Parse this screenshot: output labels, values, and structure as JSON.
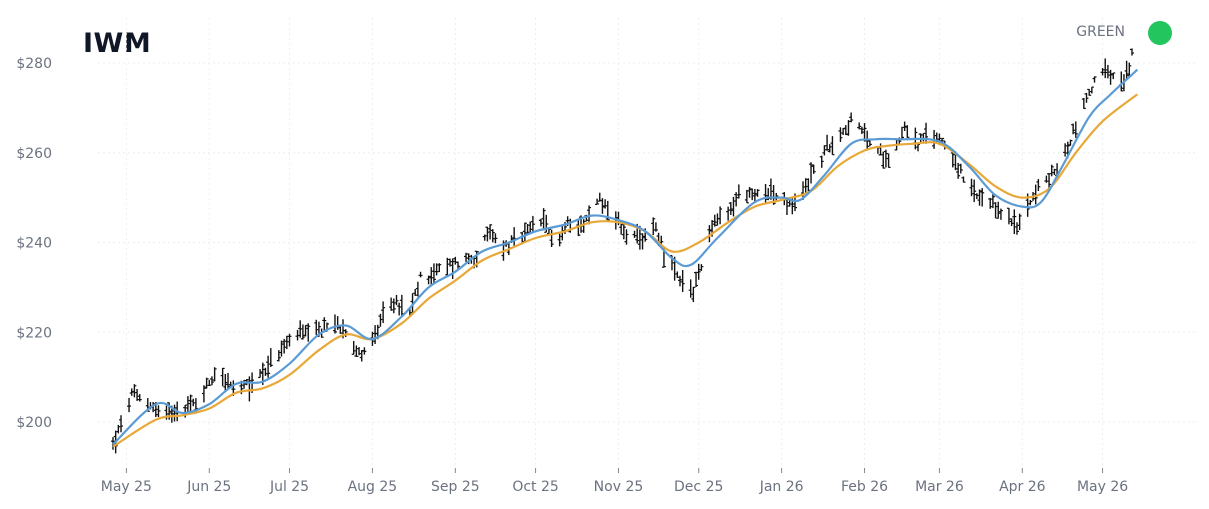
{
  "header": {
    "ticker": "IWM",
    "status_label": "GREEN",
    "status_color": "#22c55e"
  },
  "chart_data": {
    "type": "ohlc-line",
    "title": "IWM",
    "ylim": [
      190,
      290
    ],
    "y_ticks": [
      200,
      220,
      240,
      260,
      280
    ],
    "y_tick_labels": [
      "$200",
      "$220",
      "$240",
      "$260",
      "$280"
    ],
    "x_range": [
      "2025-05-20",
      "2026-06-08"
    ],
    "x_ticks": [
      "2025-05-25",
      "2025-06-25",
      "2025-07-25",
      "2025-08-25",
      "2025-09-25",
      "2025-10-25",
      "2025-11-25",
      "2025-12-25",
      "2026-01-25",
      "2026-02-25",
      "2026-03-25",
      "2026-04-25",
      "2026-05-25"
    ],
    "x_tick_labels": [
      "May 25",
      "Jun 25",
      "Jul 25",
      "Aug 25",
      "Sep 25",
      "Oct 25",
      "Nov 25",
      "Dec 25",
      "Jan 26",
      "Feb 26",
      "Mar 26",
      "Apr 26",
      "May 26"
    ],
    "grid": true,
    "colors": {
      "bars": "#111111",
      "fast_line": "#5b9bd5",
      "slow_line": "#e8a838",
      "grid": "#eeeeee"
    },
    "price_waypoints": [
      [
        "2025-05-20",
        195
      ],
      [
        "2025-05-23",
        199
      ],
      [
        "2025-05-27",
        206
      ],
      [
        "2025-06-03",
        204
      ],
      [
        "2025-06-08",
        201
      ],
      [
        "2025-06-12",
        203
      ],
      [
        "2025-06-20",
        204
      ],
      [
        "2025-06-28",
        212
      ],
      [
        "2025-07-04",
        207
      ],
      [
        "2025-07-10",
        208
      ],
      [
        "2025-07-16",
        212
      ],
      [
        "2025-07-22",
        216
      ],
      [
        "2025-07-28",
        220
      ],
      [
        "2025-08-02",
        219
      ],
      [
        "2025-08-10",
        222
      ],
      [
        "2025-08-15",
        221
      ],
      [
        "2025-08-20",
        215
      ],
      [
        "2025-08-26",
        219
      ],
      [
        "2025-09-01",
        227
      ],
      [
        "2025-09-08",
        224
      ],
      [
        "2025-09-12",
        232
      ],
      [
        "2025-09-20",
        234
      ],
      [
        "2025-09-27",
        236
      ],
      [
        "2025-10-03",
        237
      ],
      [
        "2025-10-08",
        242
      ],
      [
        "2025-10-13",
        239
      ],
      [
        "2025-10-20",
        241
      ],
      [
        "2025-10-27",
        245
      ],
      [
        "2025-11-02",
        240
      ],
      [
        "2025-11-07",
        245
      ],
      [
        "2025-11-12",
        244
      ],
      [
        "2025-11-18",
        250
      ],
      [
        "2025-11-23",
        246
      ],
      [
        "2025-11-28",
        242
      ],
      [
        "2025-12-04",
        240
      ],
      [
        "2025-12-08",
        245
      ],
      [
        "2025-12-12",
        238
      ],
      [
        "2025-12-18",
        231
      ],
      [
        "2025-12-23",
        229
      ],
      [
        "2025-12-30",
        244
      ],
      [
        "2026-01-05",
        246
      ],
      [
        "2026-01-10",
        252
      ],
      [
        "2026-01-14",
        250
      ],
      [
        "2026-01-20",
        252
      ],
      [
        "2026-01-25",
        249
      ],
      [
        "2026-01-30",
        248
      ],
      [
        "2026-02-05",
        255
      ],
      [
        "2026-02-12",
        262
      ],
      [
        "2026-02-20",
        267
      ],
      [
        "2026-02-25",
        264
      ],
      [
        "2026-03-02",
        260
      ],
      [
        "2026-03-07",
        259
      ],
      [
        "2026-03-12",
        266
      ],
      [
        "2026-03-17",
        262
      ],
      [
        "2026-03-22",
        264
      ],
      [
        "2026-03-28",
        262
      ],
      [
        "2026-04-03",
        254
      ],
      [
        "2026-04-08",
        250
      ],
      [
        "2026-04-13",
        248
      ],
      [
        "2026-04-18",
        247
      ],
      [
        "2026-04-23",
        243
      ],
      [
        "2026-04-28",
        250
      ],
      [
        "2026-05-03",
        253
      ],
      [
        "2026-05-10",
        258
      ],
      [
        "2026-05-16",
        268
      ],
      [
        "2026-05-22",
        276
      ],
      [
        "2026-05-26",
        278
      ],
      [
        "2026-06-02",
        275
      ],
      [
        "2026-06-07",
        286
      ]
    ],
    "fast_ma_waypoints": [
      [
        "2025-05-20",
        195
      ],
      [
        "2025-06-05",
        204
      ],
      [
        "2025-06-15",
        202
      ],
      [
        "2025-06-25",
        204
      ],
      [
        "2025-07-05",
        208.5
      ],
      [
        "2025-07-15",
        209
      ],
      [
        "2025-07-25",
        213
      ],
      [
        "2025-08-05",
        219.5
      ],
      [
        "2025-08-15",
        221.5
      ],
      [
        "2025-08-25",
        218.5
      ],
      [
        "2025-09-05",
        223.5
      ],
      [
        "2025-09-15",
        230
      ],
      [
        "2025-09-25",
        233.5
      ],
      [
        "2025-10-05",
        238
      ],
      [
        "2025-10-15",
        240
      ],
      [
        "2025-10-25",
        242.5
      ],
      [
        "2025-11-05",
        244
      ],
      [
        "2025-11-15",
        246
      ],
      [
        "2025-11-25",
        245
      ],
      [
        "2025-12-05",
        242.5
      ],
      [
        "2025-12-15",
        236.5
      ],
      [
        "2025-12-22",
        235
      ],
      [
        "2026-01-01",
        241
      ],
      [
        "2026-01-15",
        249
      ],
      [
        "2026-01-25",
        250
      ],
      [
        "2026-02-01",
        249.5
      ],
      [
        "2026-02-10",
        255
      ],
      [
        "2026-02-20",
        262
      ],
      [
        "2026-03-01",
        263
      ],
      [
        "2026-03-10",
        263
      ],
      [
        "2026-03-25",
        262.5
      ],
      [
        "2026-04-05",
        257
      ],
      [
        "2026-04-15",
        250.5
      ],
      [
        "2026-04-25",
        248
      ],
      [
        "2026-05-02",
        249
      ],
      [
        "2026-05-10",
        257
      ],
      [
        "2026-05-20",
        268
      ],
      [
        "2026-05-28",
        273
      ],
      [
        "2026-06-07",
        278.5
      ]
    ],
    "slow_ma_waypoints": [
      [
        "2025-05-20",
        194.5
      ],
      [
        "2025-06-05",
        200.5
      ],
      [
        "2025-06-15",
        201.5
      ],
      [
        "2025-06-25",
        203
      ],
      [
        "2025-07-05",
        206.5
      ],
      [
        "2025-07-15",
        207.5
      ],
      [
        "2025-07-25",
        210.5
      ],
      [
        "2025-08-05",
        216
      ],
      [
        "2025-08-15",
        219.5
      ],
      [
        "2025-08-25",
        218.5
      ],
      [
        "2025-09-05",
        222
      ],
      [
        "2025-09-15",
        227.5
      ],
      [
        "2025-09-25",
        231.5
      ],
      [
        "2025-10-05",
        236
      ],
      [
        "2025-10-15",
        238.5
      ],
      [
        "2025-10-25",
        241
      ],
      [
        "2025-11-05",
        242.5
      ],
      [
        "2025-11-15",
        244.5
      ],
      [
        "2025-11-25",
        244.5
      ],
      [
        "2025-12-05",
        242.5
      ],
      [
        "2025-12-15",
        238
      ],
      [
        "2025-12-25",
        240
      ],
      [
        "2026-01-05",
        244.5
      ],
      [
        "2026-01-15",
        248
      ],
      [
        "2026-01-25",
        249.5
      ],
      [
        "2026-02-05",
        251.5
      ],
      [
        "2026-02-15",
        257
      ],
      [
        "2026-02-25",
        260.5
      ],
      [
        "2026-03-05",
        261.5
      ],
      [
        "2026-03-15",
        262
      ],
      [
        "2026-03-25",
        262
      ],
      [
        "2026-04-05",
        257.5
      ],
      [
        "2026-04-15",
        252.5
      ],
      [
        "2026-04-25",
        250
      ],
      [
        "2026-05-05",
        252
      ],
      [
        "2026-05-15",
        260
      ],
      [
        "2026-05-25",
        267
      ],
      [
        "2026-06-07",
        273
      ]
    ]
  }
}
